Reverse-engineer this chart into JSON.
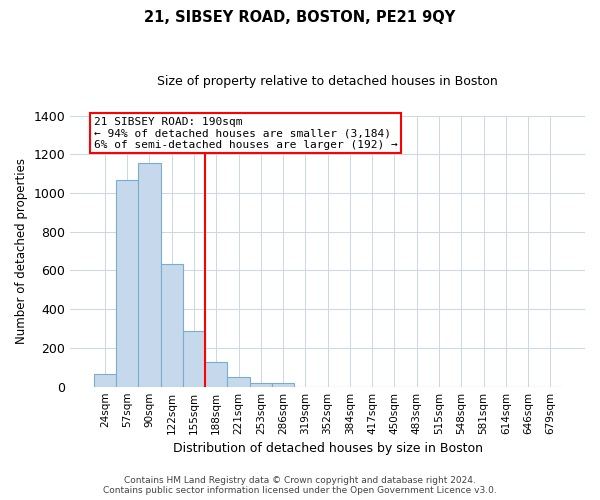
{
  "title": "21, SIBSEY ROAD, BOSTON, PE21 9QY",
  "subtitle": "Size of property relative to detached houses in Boston",
  "xlabel": "Distribution of detached houses by size in Boston",
  "ylabel": "Number of detached properties",
  "bar_labels": [
    "24sqm",
    "57sqm",
    "90sqm",
    "122sqm",
    "155sqm",
    "188sqm",
    "221sqm",
    "253sqm",
    "286sqm",
    "319sqm",
    "352sqm",
    "384sqm",
    "417sqm",
    "450sqm",
    "483sqm",
    "515sqm",
    "548sqm",
    "581sqm",
    "614sqm",
    "646sqm",
    "679sqm"
  ],
  "bar_values": [
    65,
    1065,
    1155,
    635,
    285,
    125,
    48,
    20,
    20,
    0,
    0,
    0,
    0,
    0,
    0,
    0,
    0,
    0,
    0,
    0,
    0
  ],
  "bar_color": "#c6d9ec",
  "bar_edge_color": "#7aaccc",
  "vline_color": "red",
  "vline_pos": 4.5,
  "annotation_title": "21 SIBSEY ROAD: 190sqm",
  "annotation_line1": "← 94% of detached houses are smaller (3,184)",
  "annotation_line2": "6% of semi-detached houses are larger (192) →",
  "annotation_box_color": "#ffffff",
  "annotation_box_edge": "red",
  "ylim": [
    0,
    1400
  ],
  "yticks": [
    0,
    200,
    400,
    600,
    800,
    1000,
    1200,
    1400
  ],
  "footer_line1": "Contains HM Land Registry data © Crown copyright and database right 2024.",
  "footer_line2": "Contains public sector information licensed under the Open Government Licence v3.0.",
  "background_color": "#ffffff",
  "grid_color": "#c8d8e8",
  "title_fontsize": 10.5,
  "subtitle_fontsize": 9,
  "tick_fontsize": 7.5,
  "ylabel_fontsize": 8.5,
  "xlabel_fontsize": 9,
  "annotation_fontsize": 8,
  "footer_fontsize": 6.5
}
